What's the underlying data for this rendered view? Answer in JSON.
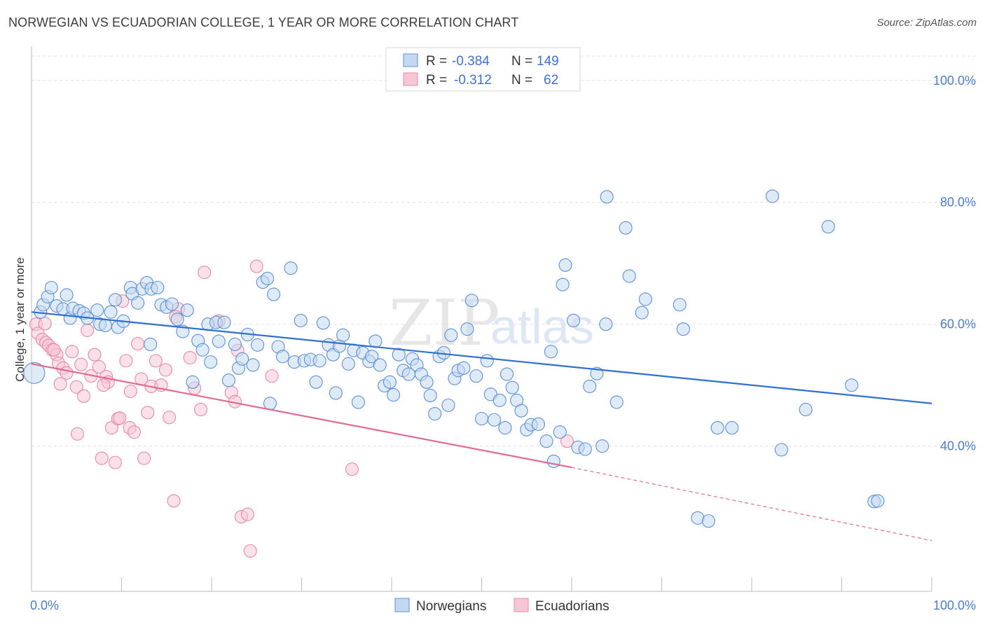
{
  "title": "NORWEGIAN VS ECUADORIAN COLLEGE, 1 YEAR OR MORE CORRELATION CHART",
  "source": "Source: ZipAtlas.com",
  "watermark": {
    "zip": "ZIP",
    "atlas": "atlas"
  },
  "colors": {
    "norwegian": "#5b8fd6",
    "norwegian_fill": "#c5d8f1",
    "norwegian_line": "#2f6fd0",
    "ecuadorian": "#e888a8",
    "ecuadorian_fill": "#f6c6d6",
    "ecuadorian_line": "#e06a93",
    "grid": "#dddddd",
    "tick_text": "#4a7cc9"
  },
  "legend_box": {
    "rows": [
      {
        "r_label": "R = ",
        "r_value": "-0.384",
        "n_label": "N = ",
        "n_value": "149"
      },
      {
        "r_label": "R = ",
        "r_value": "-0.312",
        "n_label": "N = ",
        "n_value": " 62"
      }
    ]
  },
  "bottom_legend": [
    "Norwegians",
    "Ecuadorians"
  ],
  "chart_data": {
    "type": "scatter",
    "title": "NORWEGIAN VS ECUADORIAN COLLEGE, 1 YEAR OR MORE CORRELATION CHART",
    "xlabel": "",
    "ylabel": "College, 1 year or more",
    "xlim": [
      0,
      100
    ],
    "ylim": [
      18,
      104
    ],
    "x_tick_labels": [
      "0.0%",
      "100.0%"
    ],
    "y_ticks": [
      40,
      60,
      80,
      100
    ],
    "y_tick_labels": [
      "40.0%",
      "60.0%",
      "80.0%",
      "100.0%"
    ],
    "grid": true,
    "legend_position": "top-center",
    "series": [
      {
        "name": "Norwegians",
        "R": -0.384,
        "N": 149,
        "trend": {
          "x": [
            0,
            100
          ],
          "y": [
            62.0,
            47.0
          ]
        },
        "points": [
          [
            0.3,
            52.0
          ],
          [
            1.0,
            62.0
          ],
          [
            1.3,
            63.2
          ],
          [
            1.8,
            64.5
          ],
          [
            2.2,
            66.0
          ],
          [
            2.8,
            63.0
          ],
          [
            3.5,
            62.5
          ],
          [
            3.9,
            64.8
          ],
          [
            4.3,
            61.0
          ],
          [
            4.6,
            62.6
          ],
          [
            5.3,
            62.2
          ],
          [
            5.8,
            61.8
          ],
          [
            6.2,
            61.0
          ],
          [
            7.3,
            62.3
          ],
          [
            7.6,
            60.0
          ],
          [
            8.2,
            59.8
          ],
          [
            8.8,
            62.0
          ],
          [
            9.3,
            64.0
          ],
          [
            9.6,
            59.5
          ],
          [
            10.2,
            60.5
          ],
          [
            11.0,
            66.0
          ],
          [
            11.2,
            65.0
          ],
          [
            11.8,
            63.5
          ],
          [
            12.3,
            65.8
          ],
          [
            12.8,
            66.8
          ],
          [
            13.3,
            65.8
          ],
          [
            14.0,
            66.0
          ],
          [
            14.4,
            63.2
          ],
          [
            15.0,
            62.8
          ],
          [
            15.6,
            63.3
          ],
          [
            16.2,
            60.8
          ],
          [
            16.8,
            58.8
          ],
          [
            17.3,
            62.3
          ],
          [
            17.9,
            50.5
          ],
          [
            18.5,
            57.3
          ],
          [
            19.0,
            55.8
          ],
          [
            19.6,
            60.0
          ],
          [
            19.9,
            53.8
          ],
          [
            20.5,
            60.3
          ],
          [
            20.8,
            57.2
          ],
          [
            21.4,
            60.3
          ],
          [
            21.9,
            50.8
          ],
          [
            22.6,
            56.7
          ],
          [
            23.0,
            52.8
          ],
          [
            23.4,
            54.3
          ],
          [
            24.0,
            58.3
          ],
          [
            24.6,
            53.3
          ],
          [
            25.1,
            56.6
          ],
          [
            25.7,
            66.9
          ],
          [
            26.2,
            67.5
          ],
          [
            26.9,
            64.9
          ],
          [
            27.4,
            56.3
          ],
          [
            27.9,
            54.7
          ],
          [
            28.8,
            69.2
          ],
          [
            29.2,
            53.8
          ],
          [
            29.9,
            60.6
          ],
          [
            30.3,
            54.0
          ],
          [
            31.0,
            54.2
          ],
          [
            31.6,
            50.5
          ],
          [
            32.0,
            54.0
          ],
          [
            32.4,
            60.2
          ],
          [
            33.0,
            56.6
          ],
          [
            33.5,
            55.0
          ],
          [
            33.8,
            48.7
          ],
          [
            34.2,
            56.4
          ],
          [
            34.6,
            58.2
          ],
          [
            35.2,
            53.5
          ],
          [
            35.8,
            55.7
          ],
          [
            36.3,
            47.2
          ],
          [
            36.8,
            55.3
          ],
          [
            37.5,
            53.9
          ],
          [
            37.8,
            54.7
          ],
          [
            38.2,
            57.2
          ],
          [
            38.7,
            53.3
          ],
          [
            39.2,
            49.9
          ],
          [
            39.8,
            50.5
          ],
          [
            40.2,
            48.4
          ],
          [
            40.8,
            55.0
          ],
          [
            41.3,
            52.4
          ],
          [
            41.9,
            51.8
          ],
          [
            42.3,
            54.3
          ],
          [
            42.8,
            53.3
          ],
          [
            43.3,
            51.8
          ],
          [
            43.9,
            50.5
          ],
          [
            44.3,
            48.3
          ],
          [
            44.8,
            45.3
          ],
          [
            45.3,
            54.7
          ],
          [
            45.8,
            55.3
          ],
          [
            46.3,
            46.7
          ],
          [
            46.6,
            58.2
          ],
          [
            47.0,
            51.1
          ],
          [
            47.4,
            52.4
          ],
          [
            48.0,
            52.8
          ],
          [
            48.4,
            59.2
          ],
          [
            48.9,
            63.9
          ],
          [
            49.4,
            51.5
          ],
          [
            50.0,
            44.5
          ],
          [
            50.6,
            54.0
          ],
          [
            51.0,
            48.5
          ],
          [
            51.4,
            44.3
          ],
          [
            52.0,
            47.5
          ],
          [
            52.6,
            43.0
          ],
          [
            52.8,
            51.8
          ],
          [
            53.4,
            49.6
          ],
          [
            53.9,
            47.5
          ],
          [
            54.4,
            45.8
          ],
          [
            55.0,
            42.7
          ],
          [
            55.5,
            43.5
          ],
          [
            56.3,
            43.6
          ],
          [
            57.2,
            40.8
          ],
          [
            57.7,
            55.5
          ],
          [
            58.7,
            42.3
          ],
          [
            59.0,
            66.5
          ],
          [
            59.3,
            69.7
          ],
          [
            60.2,
            60.6
          ],
          [
            60.7,
            39.8
          ],
          [
            61.5,
            39.5
          ],
          [
            62.0,
            49.8
          ],
          [
            62.8,
            51.9
          ],
          [
            63.4,
            40.0
          ],
          [
            63.8,
            60.0
          ],
          [
            63.9,
            80.9
          ],
          [
            65.0,
            47.2
          ],
          [
            66.0,
            75.8
          ],
          [
            66.4,
            67.9
          ],
          [
            67.8,
            61.9
          ],
          [
            68.2,
            64.1
          ],
          [
            72.0,
            63.2
          ],
          [
            72.4,
            59.2
          ],
          [
            74.0,
            28.2
          ],
          [
            75.2,
            27.7
          ],
          [
            76.2,
            43.0
          ],
          [
            77.8,
            43.0
          ],
          [
            82.3,
            81.0
          ],
          [
            83.3,
            39.4
          ],
          [
            88.5,
            76.0
          ],
          [
            91.1,
            50.0
          ],
          [
            93.6,
            30.9
          ],
          [
            94.0,
            31.0
          ],
          [
            26.5,
            47.0
          ],
          [
            13.2,
            56.7
          ],
          [
            58.0,
            37.5
          ],
          [
            86.0,
            46.0
          ]
        ]
      },
      {
        "name": "Ecuadorians",
        "R": -0.312,
        "N": 62,
        "trend": {
          "x": [
            0,
            60
          ],
          "y": [
            53.5,
            36.5
          ]
        },
        "trend_dashed": {
          "x": [
            60,
            100
          ],
          "y": [
            36.5,
            24.5
          ]
        },
        "points": [
          [
            0.5,
            60.0
          ],
          [
            0.7,
            58.5
          ],
          [
            1.2,
            57.5
          ],
          [
            1.6,
            57.0
          ],
          [
            1.9,
            56.5
          ],
          [
            2.3,
            55.8
          ],
          [
            2.8,
            55.0
          ],
          [
            3.0,
            53.6
          ],
          [
            3.5,
            52.8
          ],
          [
            3.9,
            52.0
          ],
          [
            4.5,
            55.5
          ],
          [
            5.0,
            49.7
          ],
          [
            5.5,
            53.4
          ],
          [
            5.8,
            48.2
          ],
          [
            6.2,
            59.0
          ],
          [
            6.6,
            51.5
          ],
          [
            7.0,
            55.0
          ],
          [
            7.5,
            53.0
          ],
          [
            7.8,
            38.0
          ],
          [
            8.3,
            51.4
          ],
          [
            8.5,
            50.5
          ],
          [
            8.9,
            43.0
          ],
          [
            9.3,
            37.3
          ],
          [
            9.6,
            44.5
          ],
          [
            10.1,
            63.8
          ],
          [
            10.5,
            54.0
          ],
          [
            10.9,
            43.0
          ],
          [
            11.4,
            42.3
          ],
          [
            11.8,
            56.8
          ],
          [
            12.2,
            51.0
          ],
          [
            12.5,
            38.0
          ],
          [
            12.9,
            45.5
          ],
          [
            13.3,
            49.8
          ],
          [
            13.8,
            54.0
          ],
          [
            14.4,
            50.0
          ],
          [
            14.9,
            52.5
          ],
          [
            15.3,
            44.7
          ],
          [
            15.8,
            31.0
          ],
          [
            16.3,
            62.5
          ],
          [
            17.6,
            54.5
          ],
          [
            18.1,
            49.5
          ],
          [
            18.8,
            46.0
          ],
          [
            19.2,
            68.5
          ],
          [
            20.8,
            60.5
          ],
          [
            22.2,
            48.8
          ],
          [
            22.6,
            47.3
          ],
          [
            22.9,
            55.7
          ],
          [
            23.3,
            28.4
          ],
          [
            24.0,
            28.8
          ],
          [
            24.3,
            22.8
          ],
          [
            25.0,
            69.5
          ],
          [
            26.7,
            51.5
          ],
          [
            35.6,
            36.2
          ],
          [
            59.5,
            40.8
          ],
          [
            5.1,
            42.0
          ],
          [
            1.5,
            60.1
          ],
          [
            3.2,
            50.2
          ],
          [
            8.0,
            50.0
          ],
          [
            11.0,
            49.0
          ],
          [
            16.0,
            61.2
          ],
          [
            9.8,
            44.6
          ],
          [
            2.5,
            55.8
          ]
        ]
      }
    ]
  }
}
